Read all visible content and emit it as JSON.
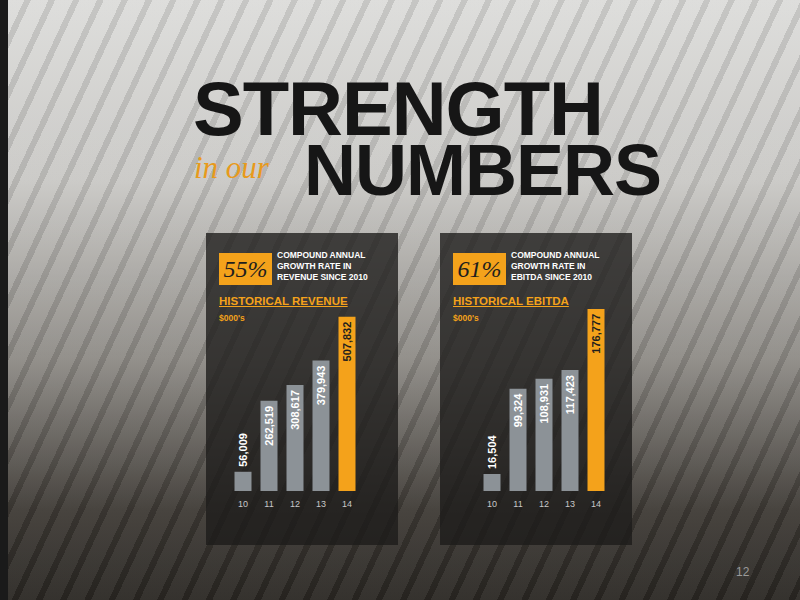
{
  "header": {
    "line1": "STRENGTH",
    "prefix": "in our",
    "line2": "NUMBERS"
  },
  "page_number": "12",
  "chart_data": [
    {
      "type": "bar",
      "title": "HISTORICAL REVENUE",
      "subtitle": "$000's",
      "annotations": [
        "55%",
        "COMPOUND ANNUAL\nGROWTH RATE IN\nREVENUE SINCE 2010"
      ],
      "categories": [
        "10",
        "11",
        "12",
        "13",
        "14"
      ],
      "values": [
        56009,
        262519,
        308617,
        379943,
        507832
      ],
      "value_labels": [
        "56,009",
        "262,519",
        "308,617",
        "379,943",
        "507,832"
      ],
      "colors": [
        "#8c9297",
        "#8c9297",
        "#8c9297",
        "#8c9297",
        "#f4a21b"
      ],
      "ylim": [
        0,
        600000
      ],
      "grid": false,
      "data_labels": true,
      "tick_labels": "x"
    },
    {
      "type": "bar",
      "title": "HISTORICAL EBITDA",
      "subtitle": "$000's",
      "annotations": [
        "61%",
        "COMPOUND ANNUAL\nGROWTH RATE IN\nEBITDA SINCE 2010"
      ],
      "categories": [
        "10",
        "11",
        "12",
        "13",
        "14"
      ],
      "values": [
        16504,
        99324,
        108931,
        117423,
        176777
      ],
      "value_labels": [
        "16,504",
        "99,324",
        "108,931",
        "117,423",
        "176,777"
      ],
      "colors": [
        "#8c9297",
        "#8c9297",
        "#8c9297",
        "#8c9297",
        "#f4a21b"
      ],
      "ylim": [
        0,
        200000
      ],
      "grid": false,
      "data_labels": true,
      "tick_labels": "x"
    }
  ]
}
